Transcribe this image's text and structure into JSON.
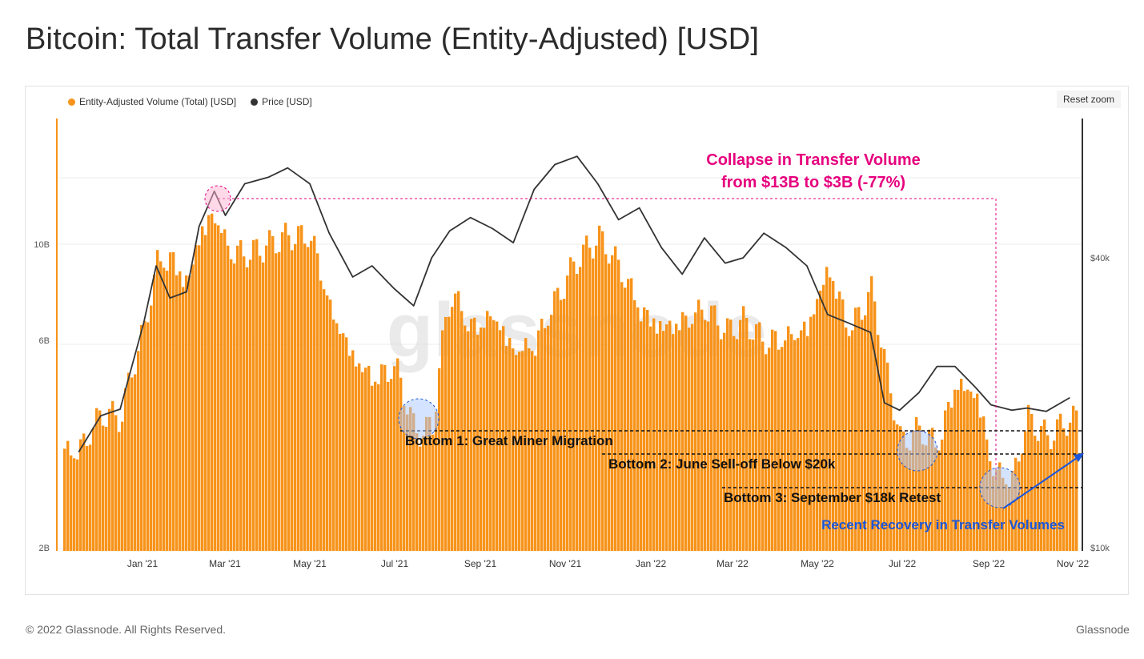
{
  "page": {
    "title": "Bitcoin: Total Transfer Volume (Entity-Adjusted) [USD]",
    "footer_left": "© 2022 Glassnode. All Rights Reserved.",
    "footer_right": "Glassnode",
    "reset_zoom_label": "Reset zoom",
    "watermark": "glassnode"
  },
  "chart_data": {
    "type": "bar",
    "title": "Bitcoin: Total Transfer Volume (Entity-Adjusted) [USD]",
    "xlabel": "",
    "ylabel": "",
    "x_ticks": [
      "Jan '21",
      "Mar '21",
      "May '21",
      "Jul '21",
      "Sep '21",
      "Nov '21",
      "Jan '22",
      "Mar '22",
      "May '22",
      "Jul '22",
      "Sep '22",
      "Nov '22"
    ],
    "y_left_ticks": [
      "2B",
      "6B",
      "10B"
    ],
    "y_left_scale": "log",
    "y_right_ticks": [
      "$10k",
      "$40k"
    ],
    "y_right_scale": "log",
    "legend_position": "top-left",
    "grid": true,
    "colors": {
      "volume": "#f7931a",
      "price": "#333333",
      "highlight": "#e6007e",
      "recovery": "#1a56db"
    },
    "series": [
      {
        "name": "Entity-Adjusted Volume (Total) [USD]",
        "type": "bar",
        "axis": "left",
        "x": [
          "2020-11-15",
          "2020-12-01",
          "2020-12-15",
          "2021-01-01",
          "2021-01-10",
          "2021-01-20",
          "2021-02-01",
          "2021-02-10",
          "2021-02-21",
          "2021-03-01",
          "2021-03-15",
          "2021-04-01",
          "2021-04-15",
          "2021-05-01",
          "2021-05-15",
          "2021-06-01",
          "2021-06-15",
          "2021-07-01",
          "2021-07-15",
          "2021-07-28",
          "2021-08-10",
          "2021-08-25",
          "2021-09-10",
          "2021-09-25",
          "2021-10-10",
          "2021-10-25",
          "2021-11-10",
          "2021-11-25",
          "2021-12-10",
          "2021-12-25",
          "2022-01-10",
          "2022-01-25",
          "2022-02-10",
          "2022-02-25",
          "2022-03-10",
          "2022-03-25",
          "2022-04-10",
          "2022-04-25",
          "2022-05-10",
          "2022-05-25",
          "2022-06-10",
          "2022-06-20",
          "2022-07-01",
          "2022-07-15",
          "2022-07-28",
          "2022-08-10",
          "2022-08-25",
          "2022-09-05",
          "2022-09-20",
          "2022-10-01",
          "2022-10-15",
          "2022-11-01"
        ],
        "values": [
          3.4,
          4.1,
          4.0,
          6.5,
          9.2,
          9.5,
          8.3,
          11.0,
          12.0,
          10.0,
          9.5,
          10.0,
          10.5,
          10.5,
          7.2,
          5.6,
          5.0,
          5.3,
          3.7,
          3.8,
          7.8,
          6.5,
          7.0,
          5.8,
          6.0,
          7.5,
          9.3,
          10.4,
          9.0,
          7.2,
          6.6,
          6.8,
          7.2,
          6.3,
          6.7,
          6.0,
          6.2,
          6.6,
          9.0,
          6.4,
          7.9,
          5.2,
          3.5,
          3.8,
          3.5,
          4.9,
          4.6,
          3.1,
          2.9,
          4.0,
          3.6,
          4.0
        ]
      },
      {
        "name": "Price [USD]",
        "type": "line",
        "axis": "right",
        "x": [
          "2020-11-15",
          "2020-12-01",
          "2020-12-15",
          "2021-01-01",
          "2021-01-10",
          "2021-01-20",
          "2021-02-01",
          "2021-02-10",
          "2021-02-21",
          "2021-03-01",
          "2021-03-15",
          "2021-04-01",
          "2021-04-15",
          "2021-05-01",
          "2021-05-15",
          "2021-06-01",
          "2021-06-15",
          "2021-07-01",
          "2021-07-15",
          "2021-07-28",
          "2021-08-10",
          "2021-08-25",
          "2021-09-10",
          "2021-09-25",
          "2021-10-10",
          "2021-10-25",
          "2021-11-10",
          "2021-11-25",
          "2021-12-10",
          "2021-12-25",
          "2022-01-10",
          "2022-01-25",
          "2022-02-10",
          "2022-02-25",
          "2022-03-10",
          "2022-03-25",
          "2022-04-10",
          "2022-04-25",
          "2022-05-10",
          "2022-05-25",
          "2022-06-10",
          "2022-06-20",
          "2022-07-01",
          "2022-07-15",
          "2022-07-28",
          "2022-08-10",
          "2022-08-25",
          "2022-09-05",
          "2022-09-20",
          "2022-10-01",
          "2022-10-15",
          "2022-11-01"
        ],
        "values": [
          15800,
          18800,
          19400,
          29300,
          38500,
          33000,
          34000,
          46500,
          55000,
          49000,
          57000,
          58800,
          61500,
          57000,
          45000,
          36500,
          38500,
          34500,
          31800,
          40000,
          45500,
          48500,
          46000,
          43000,
          55500,
          62500,
          65000,
          57000,
          48000,
          50800,
          42000,
          37000,
          44000,
          39000,
          40000,
          45000,
          42000,
          38500,
          30500,
          29300,
          28000,
          20000,
          19300,
          21000,
          23800,
          23800,
          21500,
          19800,
          19300,
          19500,
          19200,
          20500
        ]
      }
    ]
  },
  "annotations": {
    "collapse_line1": "Collapse in Transfer Volume",
    "collapse_line2": "from $13B to $3B (-77%)",
    "bottom1": "Bottom 1: Great Miner Migration",
    "bottom2": "Bottom 2: June Sell-off Below $20k",
    "bottom3": "Bottom 3: September $18k Retest",
    "recovery": "Recent Recovery in Transfer Volumes"
  }
}
